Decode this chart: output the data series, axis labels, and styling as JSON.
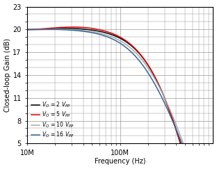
{
  "title": "",
  "xlabel": "Frequency (Hz)",
  "ylabel": "Closed-loop Gain (dB)",
  "xlim": [
    10000000.0,
    1000000000.0
  ],
  "ylim": [
    5,
    23
  ],
  "yticks": [
    5,
    8,
    11,
    14,
    17,
    20,
    23
  ],
  "bg_color": "#ffffff",
  "grid_color": "#999999",
  "curves": [
    {
      "label": "V_O = 2 V_PP",
      "color": "#000000",
      "lw": 1.1,
      "gain0": 20.0,
      "f_peak": 42000000.0,
      "peak": 0.3,
      "f0": 280000000.0,
      "n": 2.8
    },
    {
      "label": "V_O = 5 V_PP",
      "color": "#dd0000",
      "lw": 1.1,
      "gain0": 20.0,
      "f_peak": 48000000.0,
      "peak": 0.55,
      "f0": 260000000.0,
      "n": 2.6
    },
    {
      "label": "V_O = 10 V_PP",
      "color": "#aaaaaa",
      "lw": 1.1,
      "gain0": 20.0,
      "f_peak": 32000000.0,
      "peak": 0.15,
      "f0": 220000000.0,
      "n": 2.0
    },
    {
      "label": "V_O = 16 V_PP",
      "color": "#336699",
      "lw": 1.1,
      "gain0": 20.0,
      "f_peak": 28000000.0,
      "peak": 0.1,
      "f0": 190000000.0,
      "n": 1.8
    }
  ],
  "legend_labels": [
    "V_O = 2 V_PP",
    "V_O = 5 V_PP",
    "V_O = 10 V_PP",
    "V_O = 16 V_PP"
  ]
}
